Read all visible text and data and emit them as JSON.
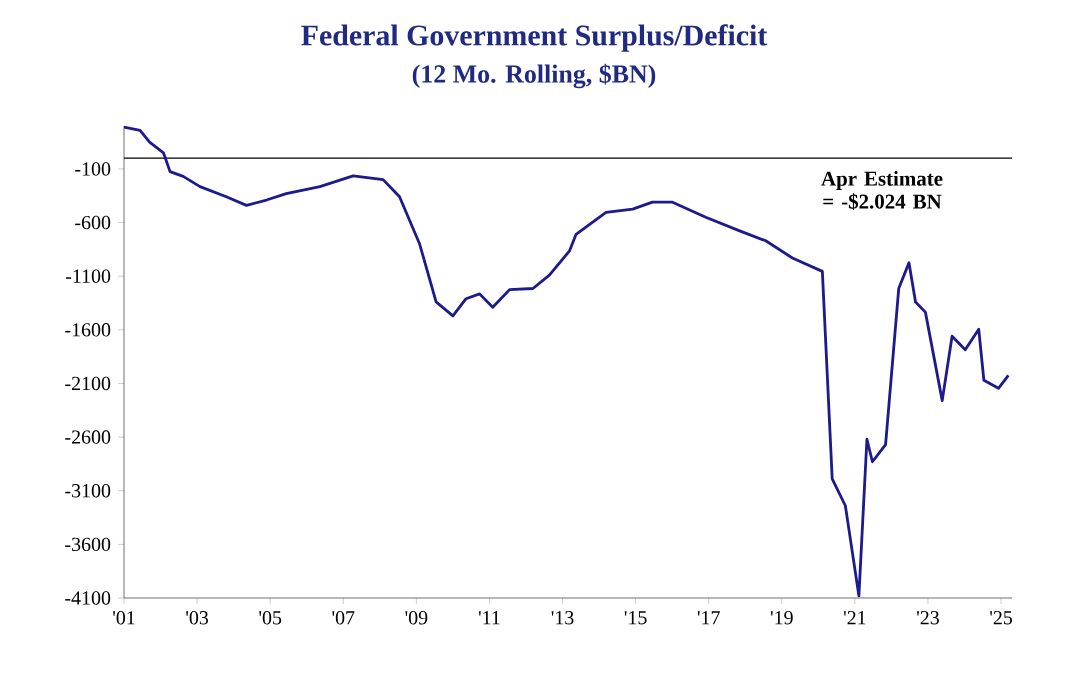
{
  "chart_data": {
    "type": "line",
    "title": "Federal Government Surplus/Deficit",
    "subtitle": "(12 Mo. Rolling, $BN)",
    "annotations": [
      "Apr Estimate = -$2.024 BN"
    ],
    "x": [
      2001.0,
      2001.44,
      2001.7,
      2002.08,
      2002.26,
      2002.62,
      2003.08,
      2003.8,
      2004.35,
      2004.9,
      2005.44,
      2006.36,
      2007.27,
      2008.09,
      2008.54,
      2009.09,
      2009.54,
      2010.0,
      2010.36,
      2010.73,
      2011.09,
      2011.55,
      2012.19,
      2012.64,
      2013.19,
      2013.37,
      2014.19,
      2014.92,
      2015.46,
      2016.01,
      2016.92,
      2017.83,
      2018.56,
      2019.29,
      2020.11,
      2020.38,
      2020.74,
      2021.11,
      2021.33,
      2021.48,
      2021.84,
      2022.2,
      2022.48,
      2022.66,
      2022.93,
      2023.39,
      2023.66,
      2024.02,
      2024.39,
      2024.53,
      2024.93,
      2025.2
    ],
    "series": [
      {
        "color": "#1c1a8c",
        "values": [
          290,
          260,
          150,
          50,
          -125,
          -170,
          -265,
          -360,
          -440,
          -390,
          -330,
          -265,
          -165,
          -200,
          -360,
          -800,
          -1340,
          -1470,
          -1310,
          -1265,
          -1390,
          -1225,
          -1215,
          -1090,
          -865,
          -710,
          -505,
          -475,
          -410,
          -410,
          -550,
          -675,
          -770,
          -930,
          -1055,
          -2990,
          -3240,
          -4080,
          -2620,
          -2830,
          -2670,
          -1215,
          -975,
          -1340,
          -1435,
          -2260,
          -1660,
          -1785,
          -1595,
          -2070,
          -2145,
          -2025
        ]
      }
    ],
    "xlim": [
      2001,
      2025.3
    ],
    "ylim": [
      -4100,
      300
    ],
    "xticks": [
      {
        "value": 2001,
        "label": "'01"
      },
      {
        "value": 2003,
        "label": "'03"
      },
      {
        "value": 2005,
        "label": "'05"
      },
      {
        "value": 2007,
        "label": "'07"
      },
      {
        "value": 2009,
        "label": "'09"
      },
      {
        "value": 2011,
        "label": "'11"
      },
      {
        "value": 2013,
        "label": "'13"
      },
      {
        "value": 2015,
        "label": "'15"
      },
      {
        "value": 2017,
        "label": "'17"
      },
      {
        "value": 2019,
        "label": "'19"
      },
      {
        "value": 2021,
        "label": "'21"
      },
      {
        "value": 2023,
        "label": "'23"
      },
      {
        "value": 2025,
        "label": "'25"
      }
    ],
    "yticks": [
      -100,
      -600,
      -1100,
      -1600,
      -2100,
      -2600,
      -3100,
      -3600,
      -4100
    ],
    "ref_lines": [
      {
        "axis": "y",
        "value": 0,
        "color": "#000000"
      }
    ],
    "grid": false,
    "marker": "none",
    "line_style": "solid"
  }
}
